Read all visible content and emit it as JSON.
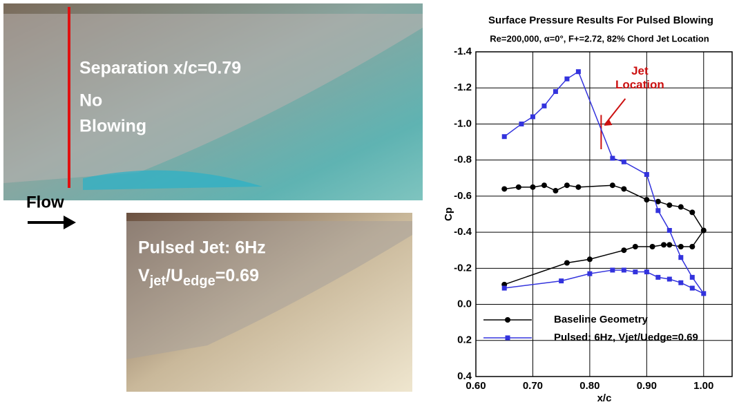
{
  "photos": {
    "top": {
      "label": "Separation x/c=0.79",
      "lines": [
        "No",
        "Blowing"
      ]
    },
    "flow": "Flow",
    "bottom": {
      "label": "Pulsed Jet: 6Hz",
      "parts": [
        "V",
        "jet",
        "/U",
        "edge",
        "=0.69"
      ]
    }
  },
  "chart_data": {
    "type": "line",
    "title": "Surface Pressure Results For Pulsed Blowing",
    "subtitle": "Re=200,000, α=0°, F+=2.72, 82% Chord Jet Location",
    "xlabel": "x/c",
    "ylabel": "Cp",
    "xlim": [
      0.6,
      1.05
    ],
    "ylim": [
      0.4,
      -1.4
    ],
    "xticks": [
      {
        "value": 0.6,
        "label": "0.60"
      },
      {
        "value": 0.7,
        "label": "0.70"
      },
      {
        "value": 0.8,
        "label": "0.80"
      },
      {
        "value": 0.9,
        "label": "0.90"
      },
      {
        "value": 1.0,
        "label": "1.00"
      }
    ],
    "yticks": [
      -1.4,
      -1.2,
      {
        "value": -1.0,
        "label": "-1.0"
      },
      -0.8,
      -0.6,
      -0.4,
      -0.2,
      {
        "value": 0,
        "label": "0.0"
      },
      0.2,
      0.4
    ],
    "grid": true,
    "annotations": [
      {
        "lines": [
          "Jet",
          "Location"
        ],
        "x": 0.82,
        "color": "#cc1111"
      }
    ],
    "series": [
      {
        "name": "Baseline Geometry",
        "color": "#000000",
        "marker": "circle",
        "x": [
          0.65,
          0.675,
          0.7,
          0.72,
          0.74,
          0.76,
          0.78,
          0.84,
          0.86,
          0.9,
          0.92,
          0.94,
          0.96,
          0.98,
          1.0,
          0.98,
          0.96,
          0.94,
          0.93,
          0.91,
          0.88,
          0.86,
          0.8,
          0.76,
          0.65
        ],
        "values": [
          -0.64,
          -0.65,
          -0.65,
          -0.66,
          -0.63,
          -0.66,
          -0.65,
          -0.66,
          -0.64,
          -0.58,
          -0.57,
          -0.55,
          -0.54,
          -0.51,
          -0.41,
          -0.32,
          -0.32,
          -0.33,
          -0.33,
          -0.32,
          -0.32,
          -0.3,
          -0.25,
          -0.23,
          -0.11
        ]
      },
      {
        "name": "Pulsed: 6Hz, Vjet/Uedge=0.69",
        "color": "#3333dd",
        "marker": "square",
        "x": [
          0.65,
          0.68,
          0.7,
          0.72,
          0.74,
          0.76,
          0.78,
          0.84,
          0.86,
          0.9,
          0.92,
          0.94,
          0.96,
          0.98,
          1.0,
          0.98,
          0.96,
          0.94,
          0.92,
          0.9,
          0.88,
          0.86,
          0.84,
          0.8,
          0.75,
          0.65
        ],
        "values": [
          -0.93,
          -1.0,
          -1.04,
          -1.1,
          -1.18,
          -1.25,
          -1.29,
          -0.81,
          -0.79,
          -0.72,
          -0.52,
          -0.41,
          -0.26,
          -0.15,
          -0.06,
          -0.09,
          -0.12,
          -0.14,
          -0.15,
          -0.18,
          -0.18,
          -0.19,
          -0.19,
          -0.17,
          -0.13,
          -0.09
        ]
      }
    ]
  }
}
